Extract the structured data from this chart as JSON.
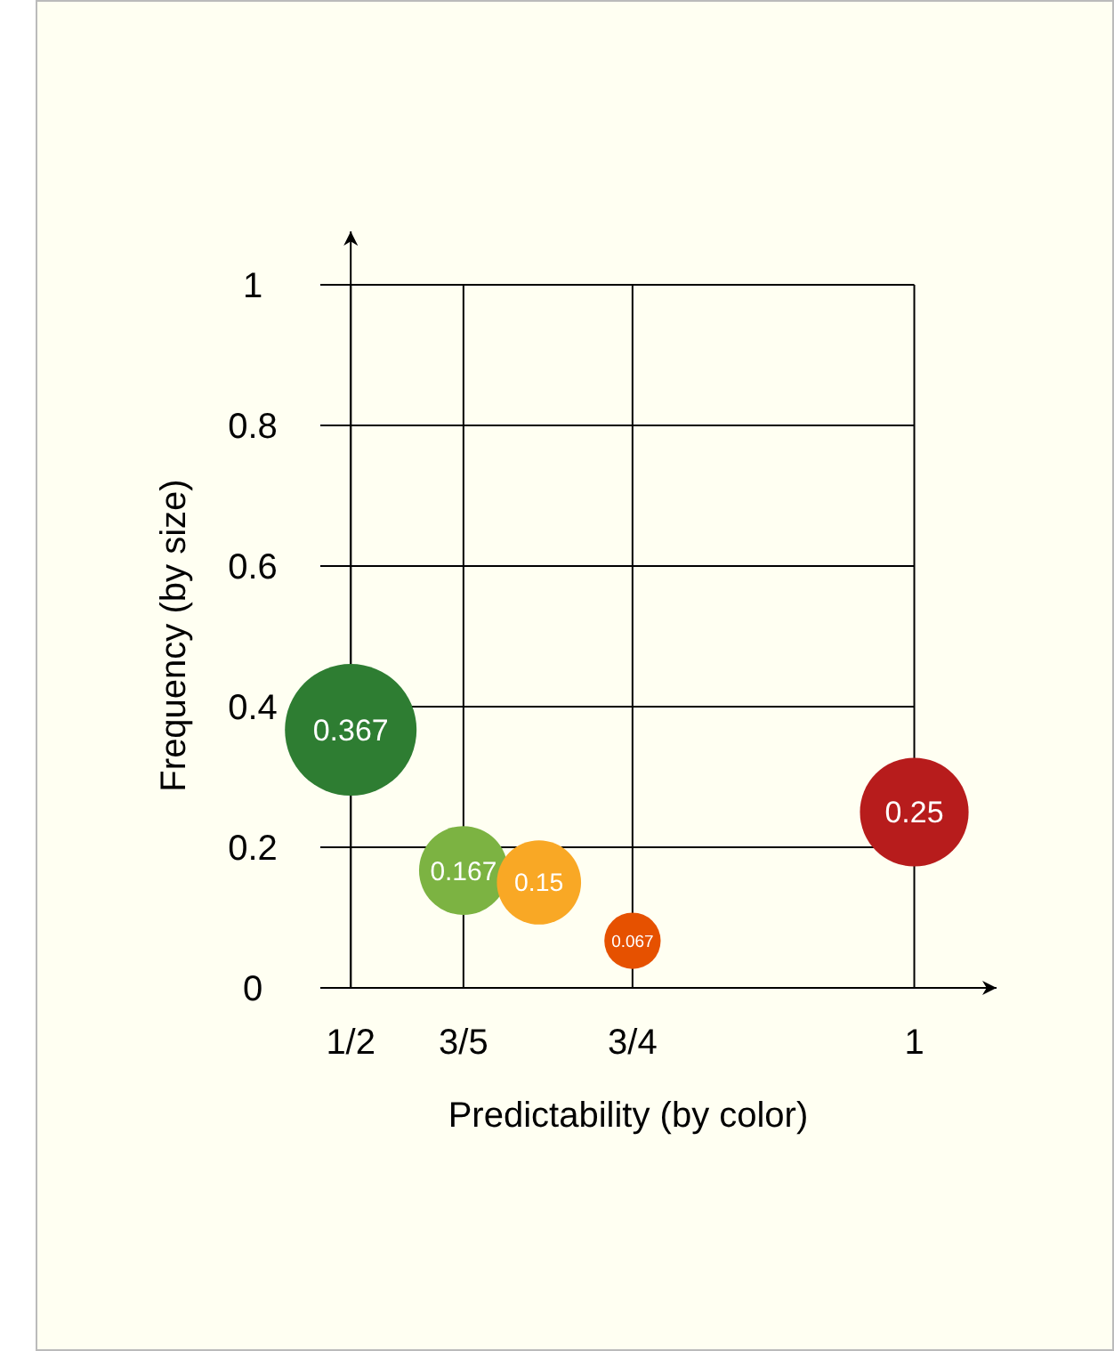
{
  "chart_data": {
    "type": "bubble",
    "xlabel": "Predictability (by color)",
    "ylabel": "Frequency (by size)",
    "x": [
      0.5,
      0.6,
      0.667,
      0.75,
      1
    ],
    "values": [
      0.367,
      0.167,
      0.15,
      0.067,
      0.25
    ],
    "sizes": [
      1,
      0.455,
      0.409,
      0.183,
      0.681
    ],
    "colors": [
      "#2e7d32",
      "#7cb342",
      "#f9a825",
      "#e65100",
      "#b71c1c"
    ],
    "data_labels": true,
    "xlim": [
      0.473,
      1.073
    ],
    "ylim": [
      0,
      1.076
    ],
    "xticks": [
      {
        "value": 0.5,
        "label": "1/2"
      },
      {
        "value": 0.6,
        "label": "3/5"
      },
      {
        "value": 0.75,
        "label": "3/4"
      },
      1
    ],
    "yticks": [
      0,
      0.2,
      0.4,
      0.6,
      0.8,
      1
    ],
    "grid": true
  }
}
